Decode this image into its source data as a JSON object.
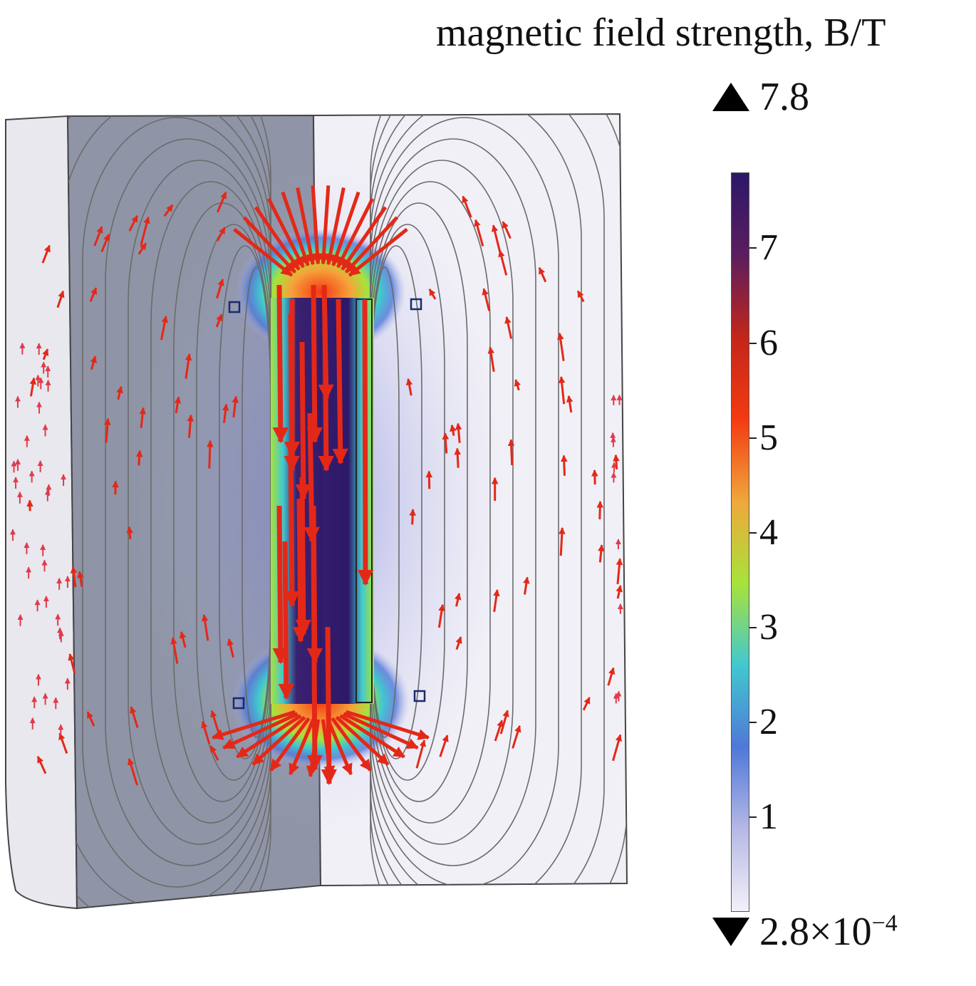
{
  "legend": {
    "title": "magnetic field strength, B/T",
    "max_label": "7.8",
    "min_label_mantissa": "2.8×10",
    "min_label_exponent": "−4",
    "ticks": [
      {
        "value": 7,
        "label": "7"
      },
      {
        "value": 6,
        "label": "6"
      },
      {
        "value": 5,
        "label": "5"
      },
      {
        "value": 4,
        "label": "4"
      },
      {
        "value": 3,
        "label": "3"
      },
      {
        "value": 2,
        "label": "2"
      },
      {
        "value": 1,
        "label": "1"
      }
    ],
    "range": [
      0.00028,
      7.8
    ],
    "colormap": [
      "#f2f1f8",
      "#b6b8e6",
      "#4f78d8",
      "#41c8cf",
      "#a8e23a",
      "#f0a73a",
      "#f43a12",
      "#c3261a",
      "#5b1d5f",
      "#2d1869"
    ]
  },
  "colors": {
    "arrow": "#e42818",
    "field_line": "#6b6b6b",
    "left_face": "#8f95a6",
    "right_face": "#f1f0f7",
    "outer_face": "#e8e8ee"
  }
}
